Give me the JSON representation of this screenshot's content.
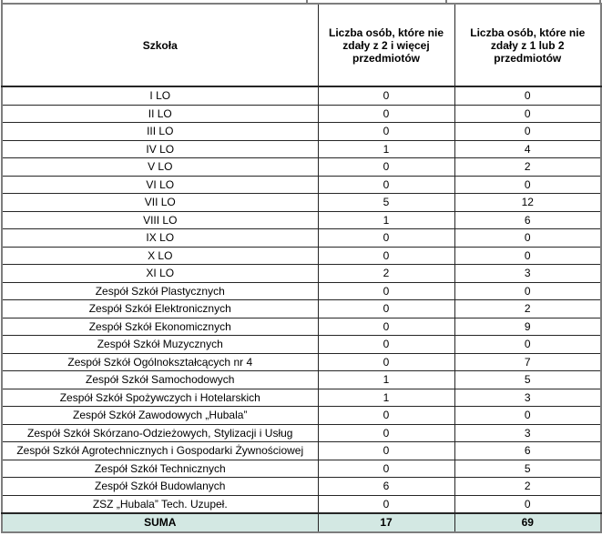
{
  "page": {
    "background": "#ffffff"
  },
  "table": {
    "columns": [
      {
        "label": "Szkoła"
      },
      {
        "label": "Liczba osób, które nie zdały z  2 i więcej przedmiotów"
      },
      {
        "label": "Liczba osób, które nie zdały z 1 lub 2 przedmiotów"
      }
    ],
    "rows": [
      {
        "school": "I LO",
        "not_passed_2_plus": "0",
        "not_passed_1_or_2": "0"
      },
      {
        "school": "II LO",
        "not_passed_2_plus": "0",
        "not_passed_1_or_2": "0"
      },
      {
        "school": "III LO",
        "not_passed_2_plus": "0",
        "not_passed_1_or_2": "0"
      },
      {
        "school": "IV LO",
        "not_passed_2_plus": "1",
        "not_passed_1_or_2": "4"
      },
      {
        "school": "V LO",
        "not_passed_2_plus": "0",
        "not_passed_1_or_2": "2"
      },
      {
        "school": "VI LO",
        "not_passed_2_plus": "0",
        "not_passed_1_or_2": "0"
      },
      {
        "school": "VII LO",
        "not_passed_2_plus": "5",
        "not_passed_1_or_2": "12"
      },
      {
        "school": "VIII LO",
        "not_passed_2_plus": "1",
        "not_passed_1_or_2": "6"
      },
      {
        "school": "IX LO",
        "not_passed_2_plus": "0",
        "not_passed_1_or_2": "0"
      },
      {
        "school": "X LO",
        "not_passed_2_plus": "0",
        "not_passed_1_or_2": "0"
      },
      {
        "school": "XI LO",
        "not_passed_2_plus": "2",
        "not_passed_1_or_2": "3"
      },
      {
        "school": "Zespół Szkół Plastycznych",
        "not_passed_2_plus": "0",
        "not_passed_1_or_2": "0"
      },
      {
        "school": "Zespół Szkół Elektronicznych",
        "not_passed_2_plus": "0",
        "not_passed_1_or_2": "2"
      },
      {
        "school": "Zespół Szkół Ekonomicznych",
        "not_passed_2_plus": "0",
        "not_passed_1_or_2": "9"
      },
      {
        "school": "Zespół Szkół Muzycznych",
        "not_passed_2_plus": "0",
        "not_passed_1_or_2": "0"
      },
      {
        "school": "Zespół Szkół Ogólnokształcących nr 4",
        "not_passed_2_plus": "0",
        "not_passed_1_or_2": "7"
      },
      {
        "school": "Zespół Szkół Samochodowych",
        "not_passed_2_plus": "1",
        "not_passed_1_or_2": "5"
      },
      {
        "school": "Zespół Szkół Spożywczych i Hotelarskich",
        "not_passed_2_plus": "1",
        "not_passed_1_or_2": "3"
      },
      {
        "school": "Zespół Szkół Zawodowych „Hubala”",
        "not_passed_2_plus": "0",
        "not_passed_1_or_2": "0"
      },
      {
        "school": "Zespół Szkół Skórzano-Odzieżowych, Stylizacji i Usług",
        "not_passed_2_plus": "0",
        "not_passed_1_or_2": "3"
      },
      {
        "school": "Zespół Szkół Agrotechnicznych i Gospodarki Żywnościowej",
        "not_passed_2_plus": "0",
        "not_passed_1_or_2": "6"
      },
      {
        "school": "Zespół Szkół Technicznych",
        "not_passed_2_plus": "0",
        "not_passed_1_or_2": "5"
      },
      {
        "school": "Zespół Szkół Budowlanych",
        "not_passed_2_plus": "6",
        "not_passed_1_or_2": "2"
      },
      {
        "school": "ZSZ „Hubala” Tech. Uzupeł.",
        "not_passed_2_plus": "0",
        "not_passed_1_or_2": "0"
      }
    ],
    "summary": {
      "label": "SUMA",
      "not_passed_2_plus": "17",
      "not_passed_1_or_2": "69"
    },
    "colors": {
      "summary_bg": "#d3e8e3",
      "border_inner": "#262626",
      "border_outer": "#7d7d7d"
    }
  }
}
